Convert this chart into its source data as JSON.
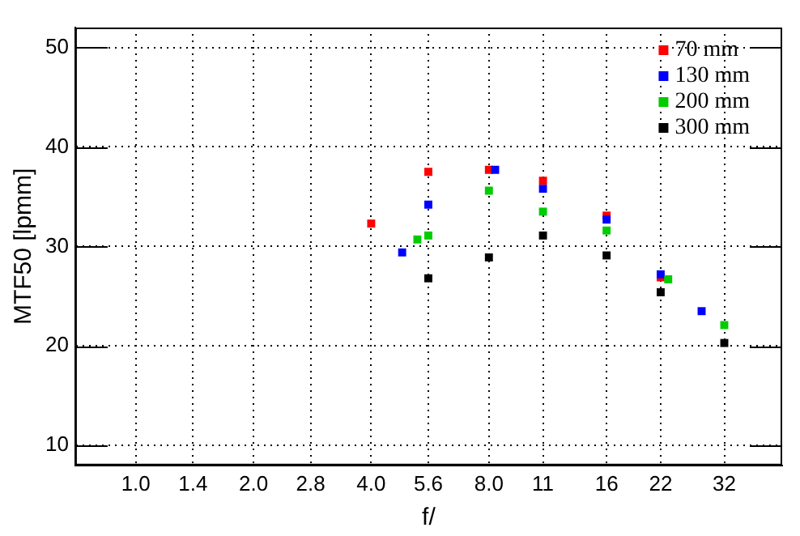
{
  "chart_data": {
    "type": "scatter",
    "xlabel": "f/",
    "ylabel": "MTF50 [lpmm]",
    "log": "x",
    "xlim": [
      0.71,
      45
    ],
    "ylim": [
      8,
      52
    ],
    "xticks": [
      {
        "value": 1,
        "label": "1.0"
      },
      1.4,
      {
        "value": 2,
        "label": "2.0"
      },
      2.8,
      {
        "value": 4,
        "label": "4.0"
      },
      5.6,
      {
        "value": 8,
        "label": "8.0"
      },
      11,
      16,
      22,
      32
    ],
    "yticks": [
      10,
      20,
      30,
      40,
      50
    ],
    "grid": true,
    "legend": "top right",
    "marker": "square",
    "series": [
      {
        "name": "70 mm",
        "color": "#ff0000",
        "x": [
          4,
          5.6,
          8,
          11,
          16,
          22
        ],
        "values": [
          32.3,
          37.5,
          37.7,
          36.6,
          33.1,
          26.9
        ]
      },
      {
        "name": "130 mm",
        "color": "#0000ff",
        "x": [
          4.8,
          5.6,
          8.3,
          11,
          16,
          22,
          28
        ],
        "values": [
          29.4,
          34.2,
          37.7,
          35.8,
          32.7,
          27.2,
          23.5
        ]
      },
      {
        "name": "200 mm",
        "color": "#00cc00",
        "x": [
          5.25,
          5.6,
          8,
          11,
          16,
          23,
          32
        ],
        "values": [
          30.7,
          31.1,
          35.6,
          33.5,
          31.6,
          26.7,
          22.1
        ]
      },
      {
        "name": "300 mm",
        "color": "#000000",
        "x": [
          5.6,
          8,
          11,
          16,
          22,
          32
        ],
        "values": [
          26.8,
          28.9,
          31.1,
          29.1,
          25.4,
          20.3
        ]
      }
    ]
  }
}
